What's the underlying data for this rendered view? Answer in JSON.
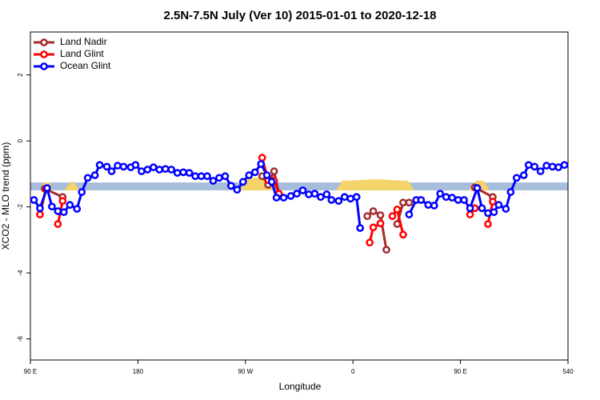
{
  "chart_data": {
    "type": "line",
    "title": "2.5N-7.5N July (Ver 10)   2015-01-01 to 2020-12-18",
    "x_label": "Longitude",
    "y_label": "XCO2 - MLO trend (ppm)",
    "xlim": [
      90,
      540
    ],
    "ylim": [
      -6.64,
      3.3
    ],
    "xticks": [
      {
        "value": 90,
        "label": "90 E"
      },
      180,
      {
        "value": 270,
        "label": "90 W"
      },
      {
        "value": 360,
        "label": "0"
      },
      {
        "value": 450,
        "label": "90 E"
      },
      540
    ],
    "yticks": [
      -6,
      -4,
      -2,
      0,
      2
    ],
    "band": [
      -1.5,
      -1.26
    ],
    "band_color": "#a6bddb",
    "legend": "top-left",
    "series": [
      {
        "name": "Land Nadir",
        "color": "#a52a2a",
        "x": [
          102,
          117,
          null,
          284,
          289,
          294,
          298,
          null,
          372,
          377,
          383,
          388,
          null,
          397,
          402,
          407,
          null,
          462,
          477
        ],
        "values": [
          -1.45,
          -1.7,
          null,
          -1.07,
          -1.33,
          -0.92,
          -1.6,
          null,
          -2.28,
          -2.13,
          -2.25,
          -3.3,
          null,
          -2.52,
          -1.87,
          -1.87,
          null,
          -1.41,
          -1.7
        ]
      },
      {
        "name": "Land Glint",
        "color": "#ff0000",
        "x": [
          98,
          103,
          null,
          113,
          117,
          null,
          284,
          289,
          294,
          298,
          null,
          374,
          377,
          383,
          null,
          393,
          397,
          402,
          null,
          458,
          462,
          null,
          473,
          477
        ],
        "values": [
          -2.23,
          -1.45,
          null,
          -2.52,
          -1.82,
          null,
          -0.51,
          -1.19,
          -1.21,
          -1.6,
          null,
          -3.08,
          -2.62,
          -2.5,
          null,
          -2.28,
          -2.08,
          -2.84,
          null,
          -2.23,
          -2.04,
          null,
          -2.52,
          -1.84
        ]
      },
      {
        "name": "Ocean Glint",
        "color": "#0000ff",
        "x": [
          93,
          98,
          104,
          108,
          113,
          118,
          123,
          129,
          133,
          138,
          144,
          148,
          154,
          158,
          163,
          168,
          174,
          178,
          183,
          188,
          193,
          198,
          203,
          208,
          213,
          218,
          223,
          228,
          233,
          238,
          243,
          248,
          253,
          258,
          263,
          268,
          273,
          278,
          283,
          288,
          292,
          296,
          302,
          308,
          313,
          318,
          323,
          328,
          333,
          338,
          342,
          348,
          353,
          358,
          363,
          366,
          null,
          407,
          413,
          417,
          423,
          428,
          433,
          438,
          443,
          448,
          453,
          458,
          464,
          468,
          473,
          478,
          482,
          488,
          492,
          497,
          503,
          507,
          512,
          517,
          522,
          527,
          532,
          537
        ],
        "values": [
          -1.79,
          -2.04,
          -1.43,
          -1.99,
          -2.13,
          -2.16,
          -1.94,
          -2.06,
          -1.55,
          -1.12,
          -1.04,
          -0.73,
          -0.78,
          -0.92,
          -0.75,
          -0.78,
          -0.8,
          -0.73,
          -0.92,
          -0.87,
          -0.8,
          -0.87,
          -0.85,
          -0.87,
          -0.97,
          -0.95,
          -0.97,
          -1.07,
          -1.07,
          -1.07,
          -1.21,
          -1.12,
          -1.07,
          -1.36,
          -1.48,
          -1.24,
          -1.04,
          -0.95,
          -0.7,
          -1.04,
          -1.24,
          -1.72,
          -1.72,
          -1.67,
          -1.6,
          -1.5,
          -1.62,
          -1.6,
          -1.7,
          -1.62,
          -1.79,
          -1.82,
          -1.7,
          -1.75,
          -1.7,
          -2.64,
          null,
          -2.23,
          -1.79,
          -1.79,
          -1.94,
          -1.96,
          -1.6,
          -1.7,
          -1.72,
          -1.79,
          -1.79,
          -2.04,
          -1.43,
          -2.04,
          -2.19,
          -2.16,
          -1.94,
          -2.06,
          -1.55,
          -1.12,
          -1.04,
          -0.73,
          -0.78,
          -0.92,
          -0.75,
          -0.78,
          -0.8,
          -0.73
        ]
      }
    ]
  }
}
